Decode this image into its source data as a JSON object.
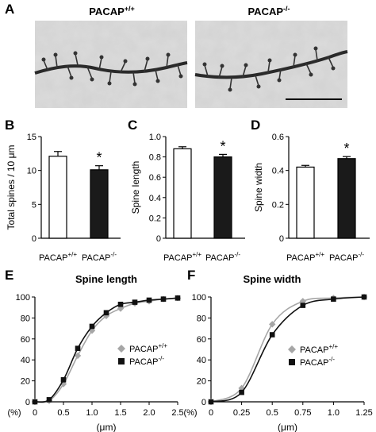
{
  "panel_a": {
    "letter": "A",
    "wt": {
      "base": "PACAP",
      "sup": "+/+"
    },
    "ko": {
      "base": "PACAP",
      "sup": "-/-"
    }
  },
  "colors": {
    "wt_bar": "#ffffff",
    "ko_bar": "#1a1a1a",
    "wt_curve": "#a6a6a6",
    "ko_curve": "#111111",
    "micrograph_bg": "#d9d9d9"
  },
  "chart_data": [
    {
      "panel": "B",
      "type": "bar",
      "ylabel": "Total spines / 10 μm",
      "ylim": [
        0,
        15
      ],
      "yticks": [
        0,
        5,
        10,
        15
      ],
      "tick_labels": [
        "0",
        "5",
        "10",
        "15"
      ],
      "categories": [
        {
          "base": "PACAP",
          "sup": "+/+"
        },
        {
          "base": "PACAP",
          "sup": "-/-"
        }
      ],
      "values": [
        12.1,
        10.1
      ],
      "errors": [
        0.7,
        0.6
      ],
      "significance": [
        "",
        "*"
      ]
    },
    {
      "panel": "C",
      "type": "bar",
      "ylabel": "Spine length",
      "ylim": [
        0,
        1.0
      ],
      "yticks": [
        0,
        0.2,
        0.4,
        0.6,
        0.8,
        1.0
      ],
      "tick_labels": [
        "0",
        "0.2",
        "0.4",
        "0.6",
        "0.8",
        "1.0"
      ],
      "categories": [
        {
          "base": "PACAP",
          "sup": "+/+"
        },
        {
          "base": "PACAP",
          "sup": "-/-"
        }
      ],
      "values": [
        0.88,
        0.8
      ],
      "errors": [
        0.02,
        0.025
      ],
      "significance": [
        "",
        "*"
      ]
    },
    {
      "panel": "D",
      "type": "bar",
      "ylabel": "Spine width",
      "ylim": [
        0,
        0.6
      ],
      "yticks": [
        0,
        0.2,
        0.4,
        0.6
      ],
      "tick_labels": [
        "0",
        "0.2",
        "0.4",
        "0.6"
      ],
      "categories": [
        {
          "base": "PACAP",
          "sup": "+/+"
        },
        {
          "base": "PACAP",
          "sup": "-/-"
        }
      ],
      "values": [
        0.42,
        0.47
      ],
      "errors": [
        0.01,
        0.012
      ],
      "significance": [
        "",
        "*"
      ]
    },
    {
      "panel": "E",
      "type": "line",
      "title": "Spine length",
      "xlabel": "(μm)",
      "ylabel_unit": "(%)",
      "xlim": [
        0,
        2.5
      ],
      "ylim": [
        0,
        100
      ],
      "xticks": [
        0,
        0.5,
        1.0,
        1.5,
        2.0,
        2.5
      ],
      "xtick_labels": [
        "0",
        "0.5",
        "1.0",
        "1.5",
        "2.0",
        "2.5"
      ],
      "yticks": [
        0,
        20,
        40,
        60,
        80,
        100
      ],
      "ytick_labels": [
        "0",
        "20",
        "40",
        "60",
        "80",
        "100"
      ],
      "legend_position": "center-right",
      "series": [
        {
          "name": {
            "base": "PACAP",
            "sup": "+/+"
          },
          "marker": "diamond",
          "x": [
            0,
            0.25,
            0.5,
            0.75,
            1.0,
            1.25,
            1.5,
            1.75,
            2.0,
            2.25,
            2.5
          ],
          "y": [
            0,
            1,
            17,
            44,
            68,
            82,
            89,
            94,
            96,
            98,
            99
          ]
        },
        {
          "name": {
            "base": "PACAP",
            "sup": "-/-"
          },
          "marker": "square",
          "x": [
            0,
            0.25,
            0.5,
            0.75,
            1.0,
            1.25,
            1.5,
            1.75,
            2.0,
            2.25,
            2.5
          ],
          "y": [
            0,
            2,
            21,
            51,
            72,
            85,
            93,
            95,
            97,
            98,
            99
          ]
        }
      ]
    },
    {
      "panel": "F",
      "type": "line",
      "title": "Spine width",
      "xlabel": "(μm)",
      "ylabel_unit": "(%)",
      "xlim": [
        0,
        1.25
      ],
      "ylim": [
        0,
        100
      ],
      "xticks": [
        0,
        0.25,
        0.5,
        0.75,
        1.0,
        1.25
      ],
      "xtick_labels": [
        "0",
        "0.25",
        "0.5",
        "0.75",
        "1.0",
        "1.25"
      ],
      "yticks": [
        0,
        20,
        40,
        60,
        80,
        100
      ],
      "ytick_labels": [
        "0",
        "20",
        "40",
        "60",
        "80",
        "100"
      ],
      "legend_position": "center-right",
      "series": [
        {
          "name": {
            "base": "PACAP",
            "sup": "+/+"
          },
          "marker": "diamond",
          "x": [
            0,
            0.25,
            0.5,
            0.75,
            1.0,
            1.25
          ],
          "y": [
            0,
            13,
            74,
            96,
            99,
            100
          ]
        },
        {
          "name": {
            "base": "PACAP",
            "sup": "-/-"
          },
          "marker": "square",
          "x": [
            0,
            0.25,
            0.5,
            0.75,
            1.0,
            1.25
          ],
          "y": [
            0,
            9,
            64,
            92,
            98,
            100
          ]
        }
      ]
    }
  ]
}
